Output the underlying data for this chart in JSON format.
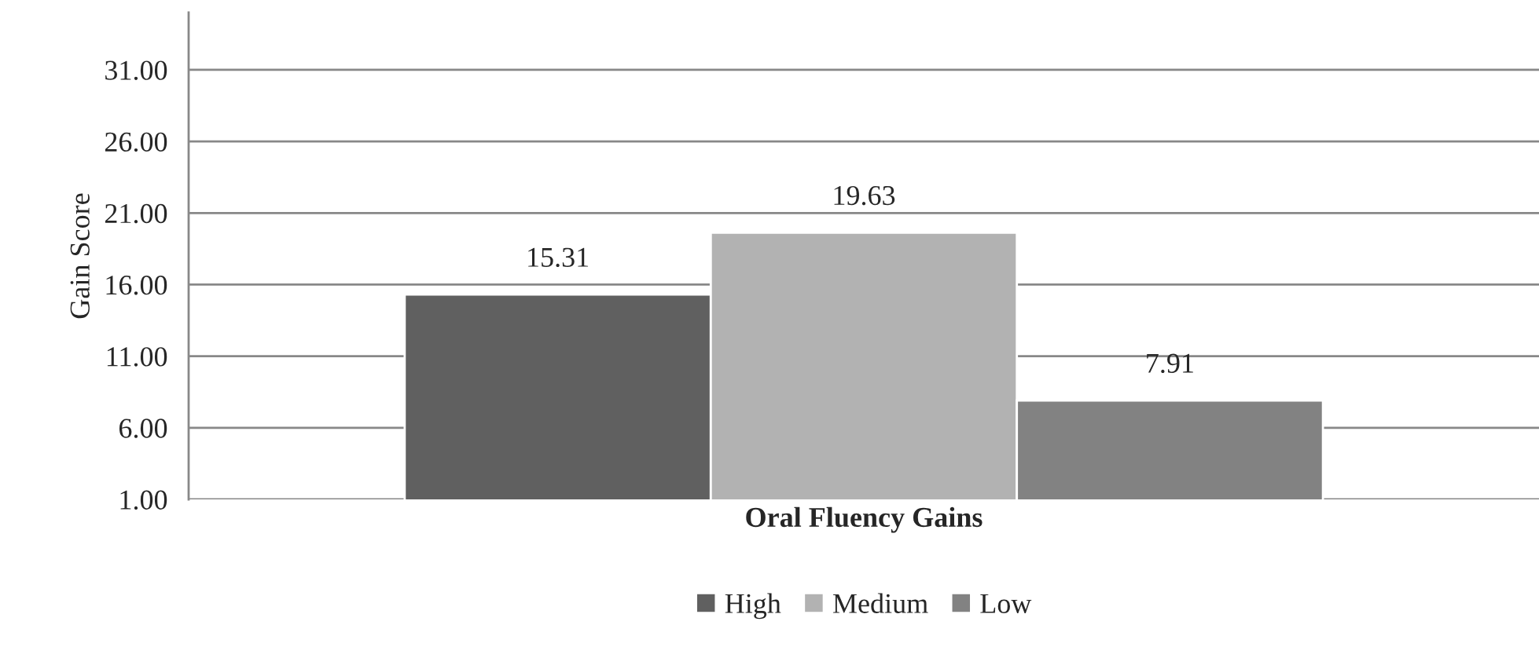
{
  "chart_data": {
    "type": "bar",
    "ylabel": "Gain Score",
    "categories": [
      "Oral Fluency Gains"
    ],
    "series": [
      {
        "name": "High",
        "color": "#606060",
        "values": [
          15.31
        ]
      },
      {
        "name": "Medium",
        "color": "#b2b2b2",
        "values": [
          19.63
        ]
      },
      {
        "name": "Low",
        "color": "#828282",
        "values": [
          7.91
        ]
      }
    ],
    "ylim": [
      1,
      35
    ],
    "yticks": [
      {
        "value": 1,
        "label": "1.00"
      },
      {
        "value": 6,
        "label": "6.00"
      },
      {
        "value": 11,
        "label": "11.00"
      },
      {
        "value": 16,
        "label": "16.00"
      },
      {
        "value": 21,
        "label": "21.00"
      },
      {
        "value": 26,
        "label": "26.00"
      },
      {
        "value": 31,
        "label": "31.00"
      }
    ],
    "grid": "y",
    "data_labels": true,
    "legend": "bottom"
  }
}
